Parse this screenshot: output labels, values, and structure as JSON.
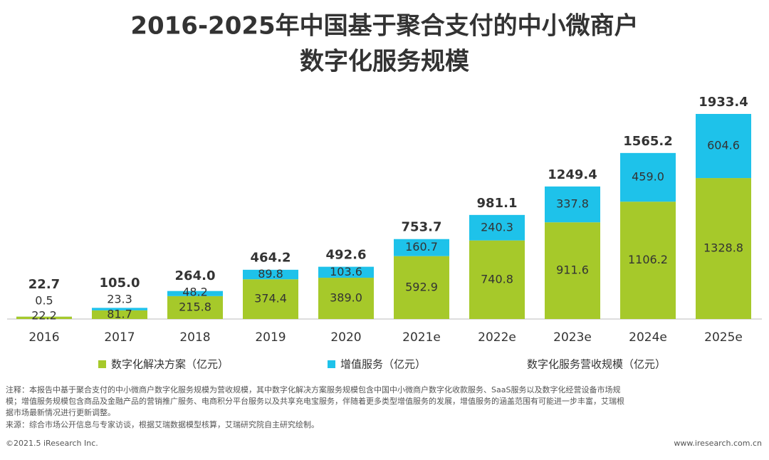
{
  "chart_data": {
    "type": "stacked-bar",
    "title": [
      "2016-2025年中国基于聚合支付的中小微商户",
      "数字化服务规模"
    ],
    "categories": [
      "2016",
      "2017",
      "2018",
      "2019",
      "2020",
      "2021e",
      "2022e",
      "2023e",
      "2024e",
      "2025e"
    ],
    "series": [
      {
        "name": "数字化解决方案（亿元）",
        "color": "#a6c92a",
        "values": [
          22.2,
          81.7,
          215.8,
          374.4,
          389.0,
          592.9,
          740.8,
          911.6,
          1106.2,
          1328.8
        ],
        "value_labels": [
          "22.2",
          "81.7",
          "215.8",
          "374.4",
          "389.0",
          "592.9",
          "740.8",
          "911.6",
          "1106.2",
          "1328.8"
        ]
      },
      {
        "name": "增值服务（亿元）",
        "color": "#1ec2ea",
        "values": [
          0.5,
          23.3,
          48.2,
          89.8,
          103.6,
          160.7,
          240.3,
          337.8,
          459.0,
          604.6
        ],
        "value_labels": [
          "0.5",
          "23.3",
          "48.2",
          "89.8",
          "103.6",
          "160.7",
          "240.3",
          "337.8",
          "459.0",
          "604.6"
        ]
      }
    ],
    "totals": {
      "name": "数字化服务营收规模（亿元）",
      "values": [
        22.7,
        105.0,
        264.0,
        464.2,
        492.6,
        753.7,
        981.1,
        1249.4,
        1565.2,
        1933.4
      ],
      "value_labels": [
        "22.7",
        "105.0",
        "264.0",
        "464.2",
        "492.6",
        "753.7",
        "981.1",
        "1249.4",
        "1565.2",
        "1933.4"
      ]
    }
  },
  "footer": {
    "note": [
      "注释：本报告中基于聚合支付的中小微商户数字化服务规模为营收规模，其中数字化解决方案服务规模包含中国中小微商户数字化收款服务、SaaS服务以及数字化经营设备市场规",
      "模；增值服务规模包含商品及金融产品的营销推广服务、电商积分平台服务以及共享充电宝服务，伴随着更多类型增值服务的发展，增值服务的涵盖范围有可能进一步丰富，艾瑞根",
      "据市场最新情况进行更新调整。"
    ],
    "source": "来源：综合市场公开信息与专家访谈，根据艾瑞数据模型核算，艾瑞研究院自主研究绘制。",
    "copyright": "©2021.5 iResearch Inc.",
    "website": "www.iresearch.com.cn"
  }
}
